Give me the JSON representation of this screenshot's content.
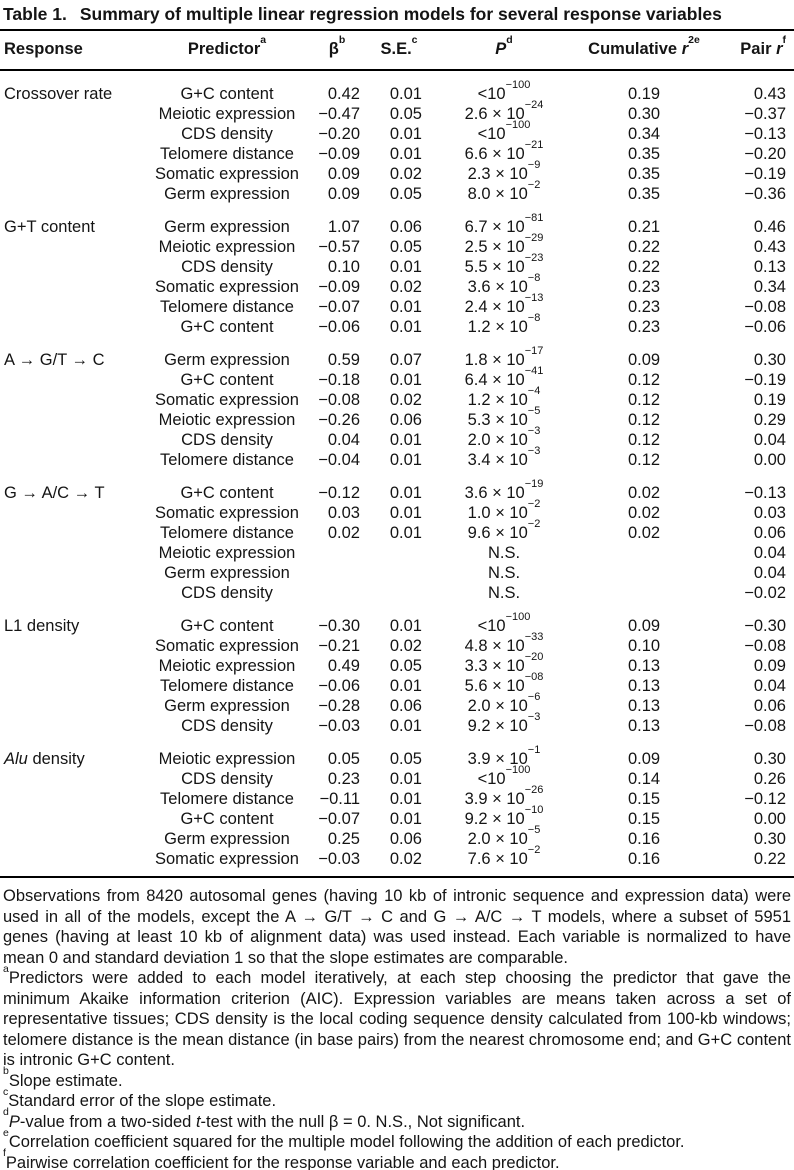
{
  "colors": {
    "background": "#ffffff",
    "text": "#141414",
    "rule": "#000000"
  },
  "title": {
    "label": "Table 1.",
    "text": "Summary of multiple linear regression models for several response variables"
  },
  "table": {
    "headers": [
      {
        "parts": [
          {
            "t": "Response"
          }
        ],
        "sup": ""
      },
      {
        "parts": [
          {
            "t": "Predictor"
          }
        ],
        "sup": "a"
      },
      {
        "parts": [
          {
            "t": "β"
          }
        ],
        "sup": "b"
      },
      {
        "parts": [
          {
            "t": "S.E."
          }
        ],
        "sup": "c"
      },
      {
        "parts": [
          {
            "t": "P",
            "i": true
          }
        ],
        "sup": "d"
      },
      {
        "parts": [
          {
            "t": "Cumulative "
          },
          {
            "t": "r",
            "i": true
          }
        ],
        "sup": "2e"
      },
      {
        "parts": [
          {
            "t": "Pair "
          },
          {
            "t": "r",
            "i": true
          }
        ],
        "sup": "f"
      }
    ],
    "groups": [
      {
        "response": [
          {
            "t": "Crossover rate"
          }
        ],
        "rows": [
          {
            "predictor": "G+C content",
            "beta": "0.42",
            "se": "0.01",
            "p_base": "<10",
            "p_sup": "−100",
            "cum_r2": "0.19",
            "pair_r": "0.43"
          },
          {
            "predictor": "Meiotic expression",
            "beta": "−0.47",
            "se": "0.05",
            "p_base": "2.6 × 10",
            "p_sup": "−24",
            "cum_r2": "0.30",
            "pair_r": "−0.37"
          },
          {
            "predictor": "CDS density",
            "beta": "−0.20",
            "se": "0.01",
            "p_base": "<10",
            "p_sup": "−100",
            "cum_r2": "0.34",
            "pair_r": "−0.13"
          },
          {
            "predictor": "Telomere distance",
            "beta": "−0.09",
            "se": "0.01",
            "p_base": "6.6 × 10",
            "p_sup": "−21",
            "cum_r2": "0.35",
            "pair_r": "−0.20"
          },
          {
            "predictor": "Somatic expression",
            "beta": "0.09",
            "se": "0.02",
            "p_base": "2.3 × 10",
            "p_sup": "−9",
            "cum_r2": "0.35",
            "pair_r": "−0.19"
          },
          {
            "predictor": "Germ expression",
            "beta": "0.09",
            "se": "0.05",
            "p_base": "8.0 × 10",
            "p_sup": "−2",
            "cum_r2": "0.35",
            "pair_r": "−0.36"
          }
        ]
      },
      {
        "response": [
          {
            "t": "G+T content"
          }
        ],
        "rows": [
          {
            "predictor": "Germ expression",
            "beta": "1.07",
            "se": "0.06",
            "p_base": "6.7 × 10",
            "p_sup": "−81",
            "cum_r2": "0.21",
            "pair_r": "0.46"
          },
          {
            "predictor": "Meiotic expression",
            "beta": "−0.57",
            "se": "0.05",
            "p_base": "2.5 × 10",
            "p_sup": "−29",
            "cum_r2": "0.22",
            "pair_r": "0.43"
          },
          {
            "predictor": "CDS density",
            "beta": "0.10",
            "se": "0.01",
            "p_base": "5.5 × 10",
            "p_sup": "−23",
            "cum_r2": "0.22",
            "pair_r": "0.13"
          },
          {
            "predictor": "Somatic expression",
            "beta": "−0.09",
            "se": "0.02",
            "p_base": "3.6 × 10",
            "p_sup": "−8",
            "cum_r2": "0.23",
            "pair_r": "0.34"
          },
          {
            "predictor": "Telomere distance",
            "beta": "−0.07",
            "se": "0.01",
            "p_base": "2.4 × 10",
            "p_sup": "−13",
            "cum_r2": "0.23",
            "pair_r": "−0.08"
          },
          {
            "predictor": "G+C content",
            "beta": "−0.06",
            "se": "0.01",
            "p_base": "1.2 × 10",
            "p_sup": "−8",
            "cum_r2": "0.23",
            "pair_r": "−0.06"
          }
        ]
      },
      {
        "response": [
          {
            "t": "A → G/T → C"
          }
        ],
        "rows": [
          {
            "predictor": "Germ expression",
            "beta": "0.59",
            "se": "0.07",
            "p_base": "1.8 × 10",
            "p_sup": "−17",
            "cum_r2": "0.09",
            "pair_r": "0.30"
          },
          {
            "predictor": "G+C content",
            "beta": "−0.18",
            "se": "0.01",
            "p_base": "6.4 × 10",
            "p_sup": "−41",
            "cum_r2": "0.12",
            "pair_r": "−0.19"
          },
          {
            "predictor": "Somatic expression",
            "beta": "−0.08",
            "se": "0.02",
            "p_base": "1.2 × 10",
            "p_sup": "−4",
            "cum_r2": "0.12",
            "pair_r": "0.19"
          },
          {
            "predictor": "Meiotic expression",
            "beta": "−0.26",
            "se": "0.06",
            "p_base": "5.3 × 10",
            "p_sup": "−5",
            "cum_r2": "0.12",
            "pair_r": "0.29"
          },
          {
            "predictor": "CDS density",
            "beta": "0.04",
            "se": "0.01",
            "p_base": "2.0 × 10",
            "p_sup": "−3",
            "cum_r2": "0.12",
            "pair_r": "0.04"
          },
          {
            "predictor": "Telomere distance",
            "beta": "−0.04",
            "se": "0.01",
            "p_base": "3.4 × 10",
            "p_sup": "−3",
            "cum_r2": "0.12",
            "pair_r": "0.00"
          }
        ]
      },
      {
        "response": [
          {
            "t": "G → A/C → T"
          }
        ],
        "rows": [
          {
            "predictor": "G+C content",
            "beta": "−0.12",
            "se": "0.01",
            "p_base": "3.6 × 10",
            "p_sup": "−19",
            "cum_r2": "0.02",
            "pair_r": "−0.13"
          },
          {
            "predictor": "Somatic expression",
            "beta": "0.03",
            "se": "0.01",
            "p_base": "1.0 × 10",
            "p_sup": "−2",
            "cum_r2": "0.02",
            "pair_r": "0.03"
          },
          {
            "predictor": "Telomere distance",
            "beta": "0.02",
            "se": "0.01",
            "p_base": "9.6 × 10",
            "p_sup": "−2",
            "cum_r2": "0.02",
            "pair_r": "0.06"
          },
          {
            "predictor": "Meiotic expression",
            "beta": "",
            "se": "",
            "p_base": "N.S.",
            "p_sup": "",
            "cum_r2": "",
            "pair_r": "0.04"
          },
          {
            "predictor": "Germ expression",
            "beta": "",
            "se": "",
            "p_base": "N.S.",
            "p_sup": "",
            "cum_r2": "",
            "pair_r": "0.04"
          },
          {
            "predictor": "CDS density",
            "beta": "",
            "se": "",
            "p_base": "N.S.",
            "p_sup": "",
            "cum_r2": "",
            "pair_r": "−0.02"
          }
        ]
      },
      {
        "response": [
          {
            "t": "L1 density"
          }
        ],
        "rows": [
          {
            "predictor": "G+C content",
            "beta": "−0.30",
            "se": "0.01",
            "p_base": "<10",
            "p_sup": "−100",
            "cum_r2": "0.09",
            "pair_r": "−0.30"
          },
          {
            "predictor": "Somatic expression",
            "beta": "−0.21",
            "se": "0.02",
            "p_base": "4.8 × 10",
            "p_sup": "−33",
            "cum_r2": "0.10",
            "pair_r": "−0.08"
          },
          {
            "predictor": "Meiotic expression",
            "beta": "0.49",
            "se": "0.05",
            "p_base": "3.3 × 10",
            "p_sup": "−20",
            "cum_r2": "0.13",
            "pair_r": "0.09"
          },
          {
            "predictor": "Telomere distance",
            "beta": "−0.06",
            "se": "0.01",
            "p_base": "5.6 × 10",
            "p_sup": "−08",
            "cum_r2": "0.13",
            "pair_r": "0.04"
          },
          {
            "predictor": "Germ expression",
            "beta": "−0.28",
            "se": "0.06",
            "p_base": "2.0 × 10",
            "p_sup": "−6",
            "cum_r2": "0.13",
            "pair_r": "0.06"
          },
          {
            "predictor": "CDS density",
            "beta": "−0.03",
            "se": "0.01",
            "p_base": "9.2 × 10",
            "p_sup": "−3",
            "cum_r2": "0.13",
            "pair_r": "−0.08"
          }
        ]
      },
      {
        "response": [
          {
            "t": "Alu",
            "i": true
          },
          {
            "t": " density"
          }
        ],
        "rows": [
          {
            "predictor": "Meiotic expression",
            "beta": "0.05",
            "se": "0.05",
            "p_base": "3.9 × 10",
            "p_sup": "−1",
            "cum_r2": "0.09",
            "pair_r": "0.30"
          },
          {
            "predictor": "CDS density",
            "beta": "0.23",
            "se": "0.01",
            "p_base": "<10",
            "p_sup": "−100",
            "cum_r2": "0.14",
            "pair_r": "0.26"
          },
          {
            "predictor": "Telomere distance",
            "beta": "−0.11",
            "se": "0.01",
            "p_base": "3.9 × 10",
            "p_sup": "−26",
            "cum_r2": "0.15",
            "pair_r": "−0.12"
          },
          {
            "predictor": "G+C content",
            "beta": "−0.07",
            "se": "0.01",
            "p_base": "9.2 × 10",
            "p_sup": "−10",
            "cum_r2": "0.15",
            "pair_r": "0.00"
          },
          {
            "predictor": "Germ expression",
            "beta": "0.25",
            "se": "0.06",
            "p_base": "2.0 × 10",
            "p_sup": "−5",
            "cum_r2": "0.16",
            "pair_r": "0.30"
          },
          {
            "predictor": "Somatic expression",
            "beta": "−0.03",
            "se": "0.02",
            "p_base": "7.6 × 10",
            "p_sup": "−2",
            "cum_r2": "0.16",
            "pair_r": "0.22"
          }
        ]
      }
    ]
  },
  "footnotes": [
    {
      "sup": "",
      "parts": [
        {
          "t": "Observations from 8420 autosomal genes (having 10 kb of intronic sequence and expression data) were used in all of the models, except the A → G/T → C and G → A/C → T models, where a subset of 5951 genes (having at least 10 kb of alignment data) was used instead. Each variable is normalized to have mean 0 and standard deviation 1 so that the slope estimates are comparable."
        }
      ]
    },
    {
      "sup": "a",
      "parts": [
        {
          "t": "Predictors were added to each model iteratively, at each step choosing the predictor that gave the minimum Akaike information criterion (AIC). Expression variables are means taken across a set of representative tissues; CDS density is the local coding sequence density calculated from 100-kb windows; telomere distance is the mean distance (in base pairs) from the nearest chromosome end; and G+C content is intronic G+C content."
        }
      ]
    },
    {
      "sup": "b",
      "parts": [
        {
          "t": "Slope estimate."
        }
      ]
    },
    {
      "sup": "c",
      "parts": [
        {
          "t": "Standard error of the slope estimate."
        }
      ]
    },
    {
      "sup": "d",
      "parts": [
        {
          "t": "P",
          "i": true
        },
        {
          "t": "-value from a two-sided "
        },
        {
          "t": "t",
          "i": true
        },
        {
          "t": "-test with the null β = 0. N.S., Not significant."
        }
      ]
    },
    {
      "sup": "e",
      "parts": [
        {
          "t": "Correlation coefficient squared for the multiple model following the addition of each predictor."
        }
      ]
    },
    {
      "sup": "f",
      "parts": [
        {
          "t": "Pairwise correlation coefficient for the response variable and each predictor."
        }
      ]
    }
  ]
}
